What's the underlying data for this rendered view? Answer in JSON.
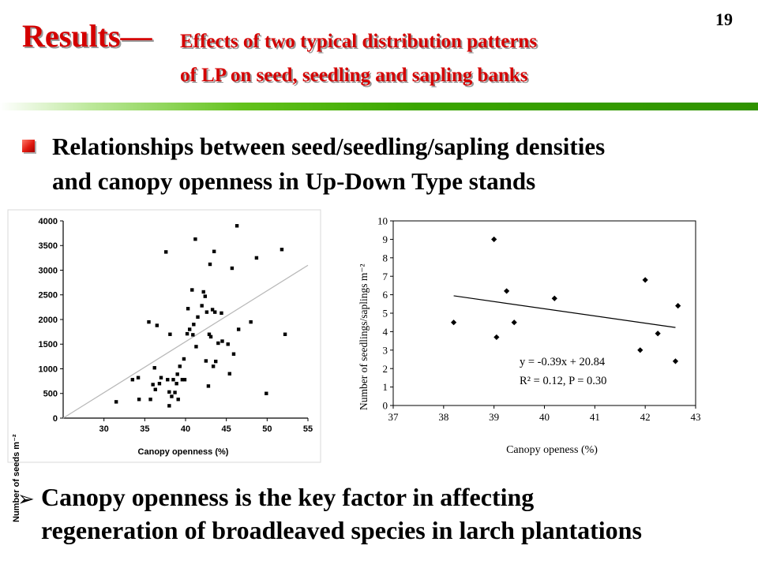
{
  "slide": {
    "page_number": "19",
    "title_main": "Results—",
    "title_sub_line1": "Effects of two typical distribution patterns",
    "title_sub_line2": "of LP on seed, seedling and sapling banks",
    "heading_line1": "Relationships between seed/seedling/sapling densities",
    "heading_line2": "and canopy openness in Up-Down Type stands",
    "conclusion_arrow": "➢",
    "conclusion_line1": "Canopy openness is the key factor in affecting",
    "conclusion_line2": "regeneration of broadleaved species in larch plantations"
  },
  "chart_data": [
    {
      "type": "scatter",
      "xlabel": "Canopy openness (%)",
      "ylabel": "Number of seeds m⁻²",
      "xlim": [
        25,
        55
      ],
      "ylim": [
        0,
        4000
      ],
      "xticks": [
        "30",
        "35",
        "40",
        "45",
        "50",
        "55"
      ],
      "yticks": [
        "0",
        "500",
        "1000",
        "1500",
        "2000",
        "2500",
        "3000",
        "3500",
        "4000"
      ],
      "marker": "square",
      "trendline": {
        "x": [
          25,
          55
        ],
        "y": [
          0,
          3100
        ]
      },
      "points": [
        [
          31.5,
          330
        ],
        [
          33.5,
          780
        ],
        [
          34.2,
          820
        ],
        [
          34.3,
          380
        ],
        [
          35.5,
          1950
        ],
        [
          35.7,
          380
        ],
        [
          36.0,
          680
        ],
        [
          36.2,
          1020
        ],
        [
          36.3,
          580
        ],
        [
          36.5,
          1880
        ],
        [
          36.8,
          700
        ],
        [
          37.0,
          820
        ],
        [
          37.6,
          3370
        ],
        [
          37.8,
          780
        ],
        [
          38.0,
          250
        ],
        [
          38.0,
          530
        ],
        [
          38.1,
          1700
        ],
        [
          38.3,
          440
        ],
        [
          38.5,
          780
        ],
        [
          38.7,
          520
        ],
        [
          38.9,
          700
        ],
        [
          39.0,
          890
        ],
        [
          39.1,
          380
        ],
        [
          39.3,
          1050
        ],
        [
          39.6,
          780
        ],
        [
          39.8,
          1200
        ],
        [
          39.9,
          780
        ],
        [
          40.2,
          1710
        ],
        [
          40.3,
          2220
        ],
        [
          40.5,
          1800
        ],
        [
          40.8,
          2600
        ],
        [
          40.9,
          1690
        ],
        [
          41.0,
          1900
        ],
        [
          41.2,
          3630
        ],
        [
          41.3,
          1450
        ],
        [
          41.5,
          2050
        ],
        [
          42.0,
          2280
        ],
        [
          42.2,
          2560
        ],
        [
          42.4,
          2470
        ],
        [
          42.5,
          1160
        ],
        [
          42.6,
          2150
        ],
        [
          42.8,
          650
        ],
        [
          42.9,
          1700
        ],
        [
          43.0,
          3120
        ],
        [
          43.1,
          1650
        ],
        [
          43.3,
          2200
        ],
        [
          43.4,
          1050
        ],
        [
          43.5,
          3380
        ],
        [
          43.6,
          2150
        ],
        [
          43.7,
          1150
        ],
        [
          44.0,
          1520
        ],
        [
          44.4,
          2130
        ],
        [
          44.5,
          1560
        ],
        [
          45.2,
          1500
        ],
        [
          45.4,
          900
        ],
        [
          45.7,
          3040
        ],
        [
          45.9,
          1300
        ],
        [
          46.3,
          3900
        ],
        [
          46.5,
          1800
        ],
        [
          48.0,
          1950
        ],
        [
          48.7,
          3250
        ],
        [
          49.9,
          500
        ],
        [
          51.8,
          3420
        ],
        [
          52.2,
          1700
        ]
      ]
    },
    {
      "type": "scatter",
      "xlabel": "Canopy openess (%)",
      "ylabel": "Number of seedlings/saplings m⁻²",
      "xlim": [
        37,
        43
      ],
      "ylim": [
        0,
        10
      ],
      "xticks": [
        "37",
        "38",
        "39",
        "40",
        "41",
        "42",
        "43"
      ],
      "yticks": [
        "0",
        "1",
        "2",
        "3",
        "4",
        "5",
        "6",
        "7",
        "8",
        "9",
        "10"
      ],
      "marker": "diamond",
      "trendline": {
        "x": [
          38.2,
          42.6
        ],
        "y": [
          5.942,
          4.226
        ]
      },
      "equation": "y = -0.39x + 20.84",
      "stats": "R² = 0.12, P = 0.30",
      "points": [
        [
          38.2,
          4.5
        ],
        [
          39.0,
          9.0
        ],
        [
          39.05,
          3.7
        ],
        [
          39.25,
          6.2
        ],
        [
          39.4,
          4.5
        ],
        [
          40.2,
          5.8
        ],
        [
          41.9,
          3.0
        ],
        [
          42.0,
          6.8
        ],
        [
          42.25,
          3.9
        ],
        [
          42.6,
          2.4
        ],
        [
          42.65,
          5.4
        ]
      ]
    }
  ]
}
